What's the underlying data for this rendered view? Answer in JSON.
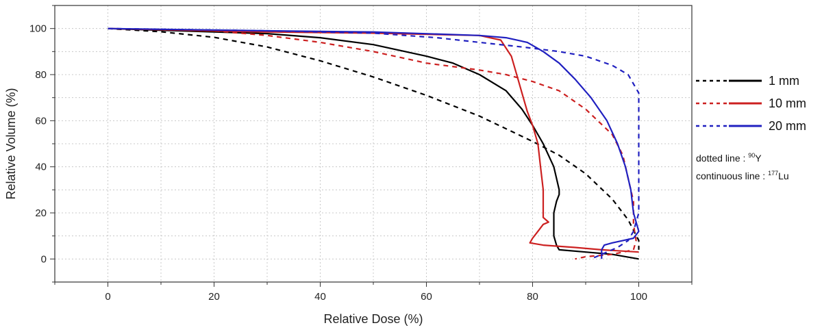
{
  "chart_data": {
    "type": "line",
    "xlabel": "Relative Dose (%)",
    "ylabel": "Relative Volume (%)",
    "xlim": [
      -10,
      110
    ],
    "ylim": [
      -10,
      110
    ],
    "x_ticks": [
      0,
      20,
      40,
      60,
      80,
      100
    ],
    "y_ticks": [
      0,
      20,
      40,
      60,
      80,
      100
    ],
    "grid": true,
    "legend_position": "right",
    "series": [
      {
        "name": "1 mm",
        "isotope": "90Y",
        "style": "dotted",
        "color": "#000000",
        "points": [
          [
            0,
            100
          ],
          [
            10,
            98.6
          ],
          [
            20,
            96.2
          ],
          [
            30,
            92
          ],
          [
            40,
            86
          ],
          [
            50,
            79
          ],
          [
            60,
            71
          ],
          [
            70,
            62
          ],
          [
            80,
            51
          ],
          [
            85,
            45
          ],
          [
            90,
            37
          ],
          [
            95,
            26
          ],
          [
            98,
            17
          ],
          [
            100,
            8
          ],
          [
            100,
            4
          ]
        ]
      },
      {
        "name": "1 mm",
        "isotope": "177Lu",
        "style": "continuous",
        "color": "#000000",
        "points": [
          [
            0,
            100
          ],
          [
            20,
            98.5
          ],
          [
            30,
            97.8
          ],
          [
            40,
            96
          ],
          [
            50,
            93
          ],
          [
            60,
            88
          ],
          [
            65,
            85
          ],
          [
            70,
            80
          ],
          [
            75,
            73
          ],
          [
            78,
            65
          ],
          [
            80,
            58
          ],
          [
            82,
            50
          ],
          [
            84,
            40
          ],
          [
            85,
            30
          ],
          [
            85,
            28
          ],
          [
            84.5,
            25
          ],
          [
            84,
            20
          ],
          [
            84,
            15
          ],
          [
            84,
            10
          ],
          [
            84.5,
            6
          ],
          [
            85,
            4
          ],
          [
            90,
            3
          ],
          [
            95,
            2
          ],
          [
            100,
            0
          ]
        ]
      },
      {
        "name": "10 mm",
        "isotope": "90Y",
        "style": "dotted",
        "color": "#cc2020",
        "points": [
          [
            0,
            100
          ],
          [
            20,
            99
          ],
          [
            30,
            97
          ],
          [
            40,
            94
          ],
          [
            50,
            90
          ],
          [
            60,
            85
          ],
          [
            70,
            82
          ],
          [
            75,
            80
          ],
          [
            80,
            77
          ],
          [
            85,
            73
          ],
          [
            90,
            65
          ],
          [
            95,
            54
          ],
          [
            97,
            45
          ],
          [
            98,
            35
          ],
          [
            99,
            25
          ],
          [
            99,
            15
          ],
          [
            99.5,
            8
          ],
          [
            99,
            4
          ],
          [
            95,
            2
          ],
          [
            90,
            1
          ],
          [
            88,
            0
          ]
        ]
      },
      {
        "name": "10 mm",
        "isotope": "177Lu",
        "style": "continuous",
        "color": "#cc2020",
        "points": [
          [
            0,
            100
          ],
          [
            30,
            98.5
          ],
          [
            50,
            98
          ],
          [
            70,
            97
          ],
          [
            74,
            95
          ],
          [
            76,
            88
          ],
          [
            77,
            80
          ],
          [
            78,
            72
          ],
          [
            79,
            64
          ],
          [
            80,
            58
          ],
          [
            81,
            50
          ],
          [
            81.5,
            40
          ],
          [
            82,
            30
          ],
          [
            82,
            22
          ],
          [
            82,
            18
          ],
          [
            83,
            16
          ],
          [
            82,
            15
          ],
          [
            81,
            12
          ],
          [
            80,
            9
          ],
          [
            79.5,
            7
          ],
          [
            82,
            6
          ],
          [
            88,
            5
          ],
          [
            93,
            4
          ],
          [
            100,
            3
          ]
        ]
      },
      {
        "name": "20 mm",
        "isotope": "90Y",
        "style": "dotted",
        "color": "#2020c0",
        "points": [
          [
            0,
            100
          ],
          [
            30,
            99
          ],
          [
            50,
            98
          ],
          [
            62,
            96
          ],
          [
            70,
            94
          ],
          [
            78,
            92
          ],
          [
            85,
            90
          ],
          [
            90,
            88
          ],
          [
            95,
            84
          ],
          [
            98,
            80
          ],
          [
            100,
            72
          ],
          [
            100,
            60
          ],
          [
            100,
            45
          ],
          [
            100,
            30
          ],
          [
            100,
            20
          ],
          [
            99,
            12
          ],
          [
            98,
            8
          ],
          [
            96,
            5
          ],
          [
            94,
            3
          ],
          [
            92,
            1
          ],
          [
            91,
            0
          ]
        ]
      },
      {
        "name": "20 mm",
        "isotope": "177Lu",
        "style": "continuous",
        "color": "#2020c0",
        "points": [
          [
            0,
            100
          ],
          [
            30,
            99
          ],
          [
            50,
            98.5
          ],
          [
            70,
            97
          ],
          [
            75,
            96
          ],
          [
            79,
            94
          ],
          [
            82,
            90
          ],
          [
            85,
            85
          ],
          [
            88,
            78
          ],
          [
            91,
            70
          ],
          [
            94,
            60
          ],
          [
            96,
            50
          ],
          [
            97.5,
            40
          ],
          [
            98.5,
            30
          ],
          [
            99,
            20
          ],
          [
            100,
            12
          ],
          [
            99,
            9
          ],
          [
            97,
            8
          ],
          [
            95,
            7
          ],
          [
            93.5,
            6
          ],
          [
            93,
            4
          ],
          [
            93,
            2
          ],
          [
            93,
            0
          ]
        ]
      }
    ],
    "legend": [
      {
        "label": "1 mm",
        "color": "#000000"
      },
      {
        "label": "10 mm",
        "color": "#cc2020"
      },
      {
        "label": "20 mm",
        "color": "#2020c0"
      }
    ],
    "notes": {
      "dotted_prefix": "dotted line : ",
      "dotted_sup": "90",
      "dotted_sym": "Y",
      "continuous_prefix": "continuous line : ",
      "continuous_sup": "177",
      "continuous_sym": "Lu"
    }
  }
}
